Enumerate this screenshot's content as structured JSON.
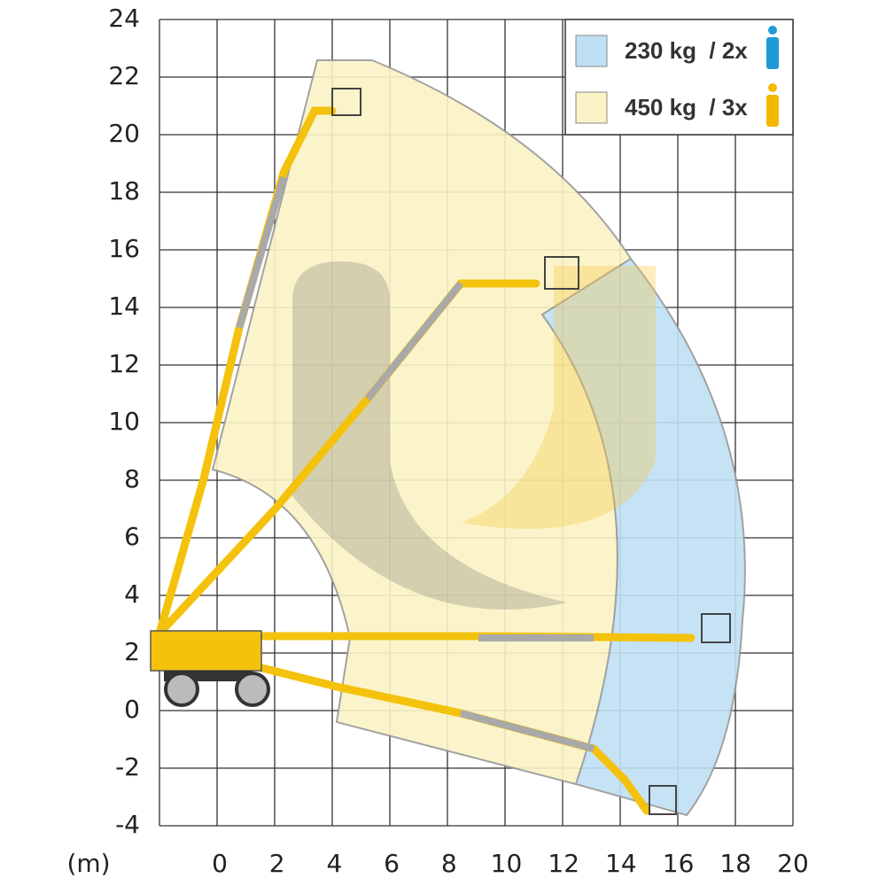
{
  "axes": {
    "unit": "(m)",
    "x_ticks": [
      "0",
      "2",
      "4",
      "6",
      "8",
      "10",
      "12",
      "14",
      "16",
      "18",
      "20"
    ],
    "y_ticks": [
      "24",
      "22",
      "20",
      "18",
      "16",
      "14",
      "12",
      "10",
      "8",
      "6",
      "4",
      "2",
      "0",
      "-2",
      "-4"
    ]
  },
  "legend": {
    "items": [
      {
        "label": "230 kg  / 2x"
      },
      {
        "label": "450 kg  / 3x"
      }
    ]
  }
}
